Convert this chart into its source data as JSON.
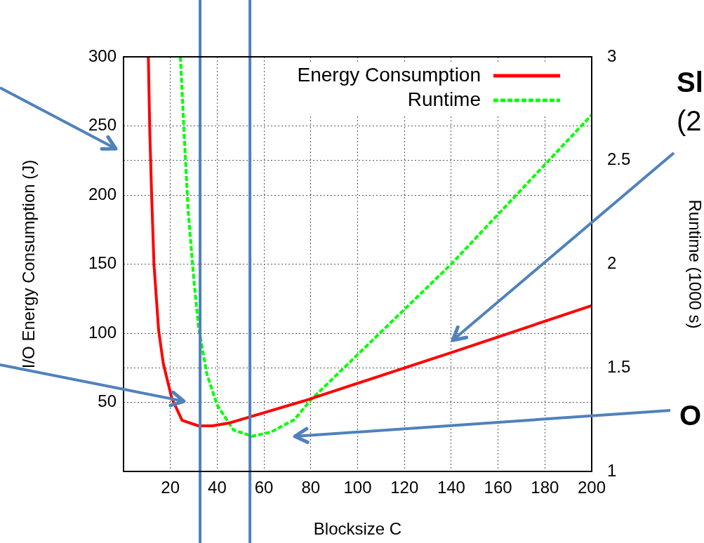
{
  "chart_data": {
    "type": "line",
    "xlabel": "Blocksize C",
    "ylabel": "I/O Energy Consumption (J)",
    "y2label": "Runtime (1000 s)",
    "xlim": [
      0,
      200
    ],
    "xticks": [
      20,
      40,
      60,
      80,
      100,
      120,
      140,
      160,
      180,
      200
    ],
    "ylim": [
      0,
      300
    ],
    "yticks": [
      50,
      100,
      150,
      200,
      250,
      300
    ],
    "y2lim": [
      1,
      3
    ],
    "y2ticks": [
      1,
      1.5,
      2,
      2.5,
      3
    ],
    "grid": true,
    "legend": "top right",
    "marker": "none",
    "series": [
      {
        "name": "Energy Consumption",
        "color": "#ff0000",
        "line_style": "solid",
        "x": [
          10.6,
          11.2,
          12,
          13,
          15,
          17,
          20.6,
          25,
          32,
          38,
          45,
          77,
          140,
          200
        ],
        "values": [
          300,
          247,
          200,
          150,
          102,
          78,
          53,
          37,
          33,
          33,
          35,
          51,
          86,
          120
        ]
      },
      {
        "name": "Runtime",
        "color": "#00ff00",
        "line_style": "dashed",
        "axis": "y2",
        "x": [
          24.3,
          25.8,
          27.6,
          30,
          32,
          35.6,
          40,
          47,
          55,
          63,
          73,
          80,
          140,
          200
        ],
        "values": [
          3,
          2.65,
          2.26,
          1.93,
          1.7,
          1.47,
          1.32,
          1.2,
          1.17,
          1.19,
          1.25,
          1.345,
          2.0,
          2.72
        ]
      }
    ],
    "ref_lines": [
      {
        "axis": "x",
        "value": 32.7,
        "color": "#4f81bd"
      },
      {
        "axis": "x",
        "value": 54,
        "color": "#4f81bd"
      }
    ],
    "annotations": [
      "Sl",
      "(2",
      "O"
    ]
  }
}
